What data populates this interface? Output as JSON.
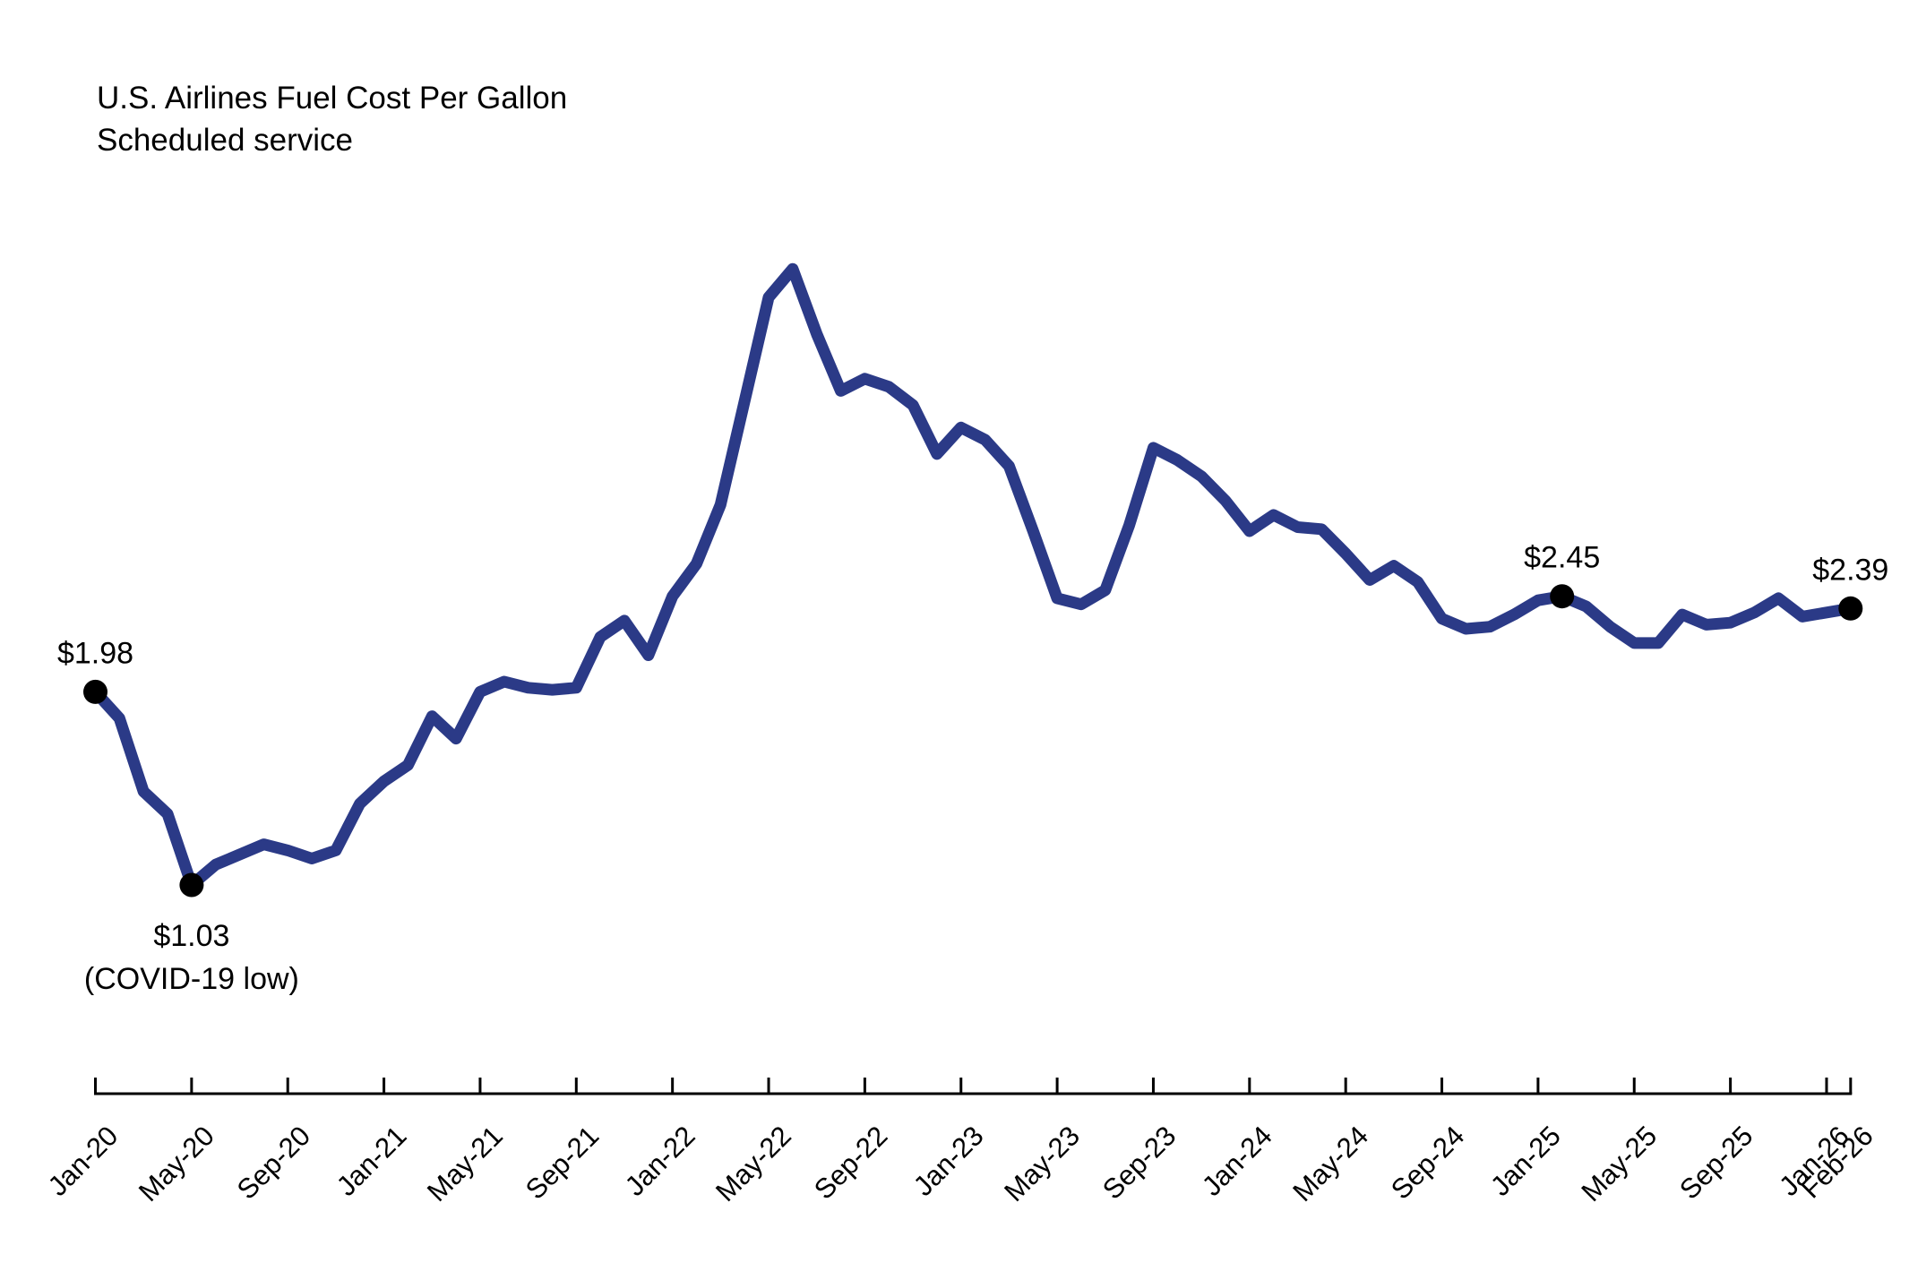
{
  "chart_data": {
    "type": "line",
    "title": "U.S. Airlines Fuel Cost Per Gallon",
    "subtitle": "Scheduled service",
    "series_name": "Fuel cost per gallon (USD)",
    "grid": "off",
    "legend": "none",
    "line_color": "#2b3a87",
    "marker_color": "#000000",
    "axis_color": "#000000",
    "ylim": [
      0.85,
      4.35
    ],
    "x": [
      "Jan-20",
      "Feb-20",
      "Mar-20",
      "Apr-20",
      "May-20",
      "Jun-20",
      "Jul-20",
      "Aug-20",
      "Sep-20",
      "Oct-20",
      "Nov-20",
      "Dec-20",
      "Jan-21",
      "Feb-21",
      "Mar-21",
      "Apr-21",
      "May-21",
      "Jun-21",
      "Jul-21",
      "Aug-21",
      "Sep-21",
      "Oct-21",
      "Nov-21",
      "Dec-21",
      "Jan-22",
      "Feb-22",
      "Mar-22",
      "Apr-22",
      "May-22",
      "Jun-22",
      "Jul-22",
      "Aug-22",
      "Sep-22",
      "Oct-22",
      "Nov-22",
      "Dec-22",
      "Jan-23",
      "Feb-23",
      "Mar-23",
      "Apr-23",
      "May-23",
      "Jun-23",
      "Jul-23",
      "Aug-23",
      "Sep-23",
      "Oct-23",
      "Nov-23",
      "Dec-23",
      "Jan-24",
      "Feb-24",
      "Mar-24",
      "Apr-24",
      "May-24",
      "Jun-24",
      "Jul-24",
      "Aug-24",
      "Sep-24",
      "Oct-24",
      "Nov-24",
      "Dec-24",
      "Jan-25",
      "Feb-25",
      "Mar-25",
      "Apr-25",
      "May-25",
      "Jun-25",
      "Jul-25",
      "Aug-25",
      "Sep-25",
      "Oct-25",
      "Nov-25",
      "Dec-25",
      "Jan-26",
      "Feb-26"
    ],
    "values": [
      1.98,
      1.85,
      1.49,
      1.38,
      1.03,
      1.13,
      1.18,
      1.23,
      1.2,
      1.16,
      1.2,
      1.43,
      1.54,
      1.62,
      1.86,
      1.75,
      1.98,
      2.03,
      2.0,
      1.99,
      2.0,
      2.25,
      2.33,
      2.16,
      2.45,
      2.61,
      2.9,
      3.41,
      3.92,
      4.06,
      3.74,
      3.46,
      3.52,
      3.48,
      3.39,
      3.15,
      3.28,
      3.22,
      3.09,
      2.77,
      2.44,
      2.41,
      2.48,
      2.8,
      3.18,
      3.12,
      3.04,
      2.92,
      2.77,
      2.85,
      2.79,
      2.78,
      2.66,
      2.53,
      2.6,
      2.52,
      2.34,
      2.29,
      2.3,
      2.36,
      2.43,
      2.45,
      2.4,
      2.3,
      2.22,
      2.22,
      2.36,
      2.31,
      2.32,
      2.37,
      2.44,
      2.35,
      2.37,
      2.39
    ],
    "x_tick_indices": [
      0,
      4,
      8,
      12,
      16,
      20,
      24,
      28,
      32,
      36,
      40,
      44,
      48,
      52,
      56,
      60,
      64,
      68,
      72,
      73
    ],
    "x_tick_labels": [
      "Jan-20",
      "May-20",
      "Sep-20",
      "Jan-21",
      "May-21",
      "Sep-21",
      "Jan-22",
      "May-22",
      "Sep-22",
      "Jan-23",
      "May-23",
      "Sep-23",
      "Jan-24",
      "May-24",
      "Sep-24",
      "Jan-25",
      "May-25",
      "Sep-25",
      "Jan-26",
      "Feb-26"
    ],
    "annotations": [
      {
        "index": 0,
        "x": "Jan-20",
        "value": 1.98,
        "label": "$1.98",
        "sublabel": "",
        "placement": "above"
      },
      {
        "index": 4,
        "x": "May-20",
        "value": 1.03,
        "label": "$1.03",
        "sublabel": "(COVID-19 low)",
        "placement": "below"
      },
      {
        "index": 61,
        "x": "Feb-25",
        "value": 2.45,
        "label": "$2.45",
        "sublabel": "",
        "placement": "above"
      },
      {
        "index": 73,
        "x": "Feb-26",
        "value": 2.39,
        "label": "$2.39",
        "sublabel": "",
        "placement": "above"
      }
    ]
  }
}
